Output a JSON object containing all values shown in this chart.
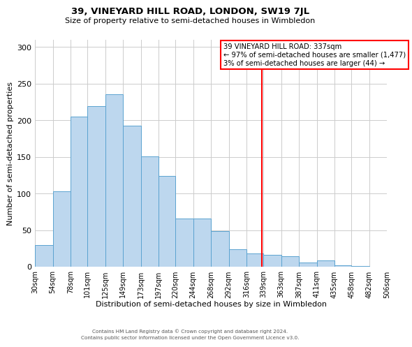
{
  "title": "39, VINEYARD HILL ROAD, LONDON, SW19 7JL",
  "subtitle": "Size of property relative to semi-detached houses in Wimbledon",
  "xlabel": "Distribution of semi-detached houses by size in Wimbledon",
  "ylabel": "Number of semi-detached properties",
  "bin_labels": [
    "30sqm",
    "54sqm",
    "78sqm",
    "101sqm",
    "125sqm",
    "149sqm",
    "173sqm",
    "197sqm",
    "220sqm",
    "244sqm",
    "268sqm",
    "292sqm",
    "316sqm",
    "339sqm",
    "363sqm",
    "387sqm",
    "411sqm",
    "435sqm",
    "458sqm",
    "482sqm",
    "506sqm"
  ],
  "bin_edges": [
    30,
    54,
    78,
    101,
    125,
    149,
    173,
    197,
    220,
    244,
    268,
    292,
    316,
    339,
    363,
    387,
    411,
    435,
    458,
    482,
    506
  ],
  "bar_heights": [
    30,
    103,
    205,
    219,
    236,
    193,
    151,
    124,
    66,
    66,
    49,
    24,
    18,
    16,
    14,
    6,
    9,
    2,
    1,
    0
  ],
  "bar_color": "#BDD7EE",
  "bar_edge_color": "#5BA3D0",
  "property_value": 337,
  "vline_color": "red",
  "annotation_title": "39 VINEYARD HILL ROAD: 337sqm",
  "annotation_line1": "← 97% of semi-detached houses are smaller (1,477)",
  "annotation_line2": "3% of semi-detached houses are larger (44) →",
  "ylim": [
    0,
    310
  ],
  "yticks": [
    0,
    50,
    100,
    150,
    200,
    250,
    300
  ],
  "footer1": "Contains HM Land Registry data © Crown copyright and database right 2024.",
  "footer2": "Contains public sector information licensed under the Open Government Licence v3.0.",
  "background_color": "#ffffff",
  "grid_color": "#cccccc"
}
